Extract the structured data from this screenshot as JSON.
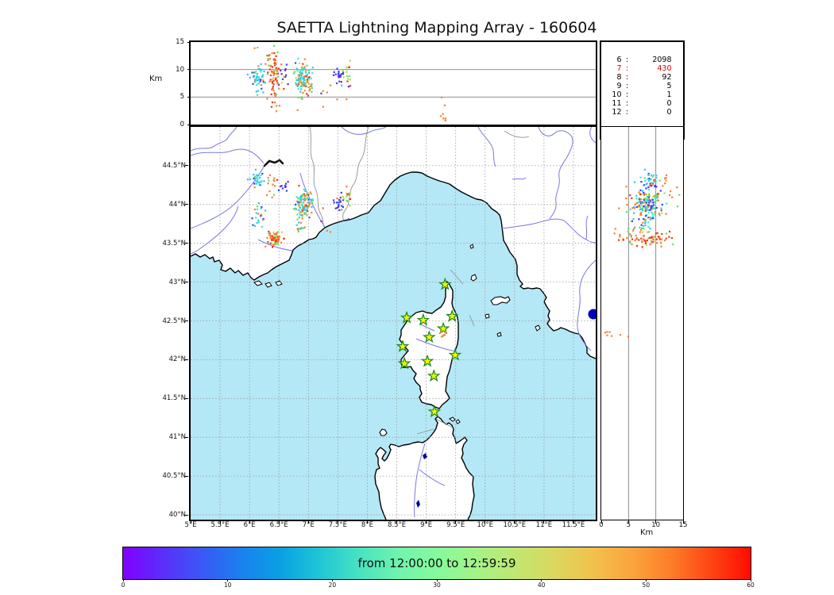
{
  "title": "SAETTA Lightning Mapping Array - 160604",
  "labels": {
    "top_ylabel": "Km",
    "right_xlabel": "Km"
  },
  "legend": {
    "rows": [
      {
        "station_count": "6",
        "sources": "2098",
        "highlight": false
      },
      {
        "station_count": "7",
        "sources": "430",
        "highlight": true
      },
      {
        "station_count": "8",
        "sources": "92",
        "highlight": false
      },
      {
        "station_count": "9",
        "sources": "5",
        "highlight": false
      },
      {
        "station_count": "10",
        "sources": "1",
        "highlight": false
      },
      {
        "station_count": "11",
        "sources": "0",
        "highlight": false
      },
      {
        "station_count": "12",
        "sources": "0",
        "highlight": false
      }
    ]
  },
  "axes": {
    "top_panel": {
      "ylabel": "Km",
      "ylim": [
        0,
        15
      ],
      "grid_y": [
        5,
        10
      ],
      "yticks": [
        {
          "v": 0,
          "label": "0"
        },
        {
          "v": 5,
          "label": "5"
        },
        {
          "v": 10,
          "label": "10"
        },
        {
          "v": 15,
          "label": "15"
        }
      ]
    },
    "map": {
      "lon_lim": [
        5.0,
        11.879
      ],
      "lat_lim": [
        39.939,
        45.0
      ],
      "lon_ticks": [
        {
          "v": 5,
          "label": "5°E"
        },
        {
          "v": 5.5,
          "label": "5.5°E"
        },
        {
          "v": 6,
          "label": "6°E"
        },
        {
          "v": 6.5,
          "label": "6.5°E"
        },
        {
          "v": 7,
          "label": "7°E"
        },
        {
          "v": 7.5,
          "label": "7.5°E"
        },
        {
          "v": 8,
          "label": "8°E"
        },
        {
          "v": 8.5,
          "label": "8.5°E"
        },
        {
          "v": 9,
          "label": "9°E"
        },
        {
          "v": 9.5,
          "label": "9.5°E"
        },
        {
          "v": 10,
          "label": "10°E"
        },
        {
          "v": 10.5,
          "label": "10.5°E"
        },
        {
          "v": 11,
          "label": "11°E"
        },
        {
          "v": 11.5,
          "label": "11.5°E"
        }
      ],
      "lat_ticks": [
        {
          "v": 44.5,
          "label": "44.5°N"
        },
        {
          "v": 44,
          "label": "44°N"
        },
        {
          "v": 43.5,
          "label": "43.5°N"
        },
        {
          "v": 43,
          "label": "43°N"
        },
        {
          "v": 42.5,
          "label": "42.5°N"
        },
        {
          "v": 42,
          "label": "42°N"
        },
        {
          "v": 41.5,
          "label": "41.5°N"
        },
        {
          "v": 41,
          "label": "41°N"
        },
        {
          "v": 40.5,
          "label": "40.5°N"
        },
        {
          "v": 40,
          "label": "40°N"
        }
      ]
    },
    "right_panel": {
      "xlabel": "Km",
      "xlim": [
        0,
        15
      ],
      "grid_x": [
        5,
        10
      ],
      "xticks": [
        {
          "v": 0,
          "label": "0"
        },
        {
          "v": 5,
          "label": "5"
        },
        {
          "v": 10,
          "label": "10"
        },
        {
          "v": 15,
          "label": "15"
        }
      ]
    }
  },
  "colorbar": {
    "label": "from 12:00:00 to 12:59:59",
    "ticks": [
      {
        "v": 0,
        "label": "0"
      },
      {
        "v": 10,
        "label": "10"
      },
      {
        "v": 20,
        "label": "20"
      },
      {
        "v": 30,
        "label": "30"
      },
      {
        "v": 40,
        "label": "40"
      },
      {
        "v": 50,
        "label": "50"
      },
      {
        "v": 60,
        "label": "60"
      }
    ],
    "gradient": [
      "#8000ff",
      "#5b2efa",
      "#3a58f6",
      "#1a80ef",
      "#09a0e4",
      "#1fc5d5",
      "#46e2c2",
      "#6ff3ae",
      "#85fa9c",
      "#a4f387",
      "#c0e771",
      "#dbd75e",
      "#f2c14b",
      "#fba33c",
      "#fd7c28",
      "#fe4413",
      "#ff0c00"
    ]
  },
  "map_colors": {
    "sea": "#b4e8f6",
    "land": "#ffffff",
    "coast": "#000000",
    "river": "#7878e8",
    "border": "#909090",
    "grid": "#999999",
    "lake": "#000088",
    "star_fill": "#f8f400",
    "star_edge": "#15881c"
  },
  "chart_data": {
    "type": "scatter",
    "title": "SAETTA Lightning Mapping Array - 160604",
    "subtitle_time_window": "from 12:00:00 to 12:59:59",
    "panels": {
      "top": {
        "x": "longitude_degE",
        "y": "altitude_km",
        "xlim": [
          5,
          11.879
        ],
        "ylim": [
          0,
          15
        ]
      },
      "map": {
        "x": "longitude_degE",
        "y": "latitude_degN",
        "xlim": [
          5,
          11.879
        ],
        "ylim": [
          39.939,
          45.0
        ]
      },
      "right": {
        "x": "altitude_km",
        "y": "latitude_degN",
        "xlim": [
          0,
          15
        ],
        "ylim": [
          39.939,
          45.0
        ]
      }
    },
    "legend_station_counts": {
      "6": 2098,
      "7": 430,
      "8": 92,
      "9": 5,
      "10": 1,
      "11": 0,
      "12": 0
    },
    "colorbar_minutes": [
      0,
      60
    ],
    "time_palette": {
      "purple": "#5a30dd",
      "blue": "#2848f0",
      "cyan": "#30c8e8",
      "turq": "#40e8c8",
      "green": "#66dd66",
      "ygreen": "#aadd44",
      "sand": "#ddcc55",
      "orange": "#f88030",
      "red": "#ee3815",
      "dred": "#dd1500"
    },
    "stations_lonlat": [
      [
        9.32,
        42.97
      ],
      [
        8.67,
        42.54
      ],
      [
        8.95,
        42.51
      ],
      [
        9.44,
        42.56
      ],
      [
        9.29,
        42.4
      ],
      [
        9.05,
        42.29
      ],
      [
        8.6,
        42.17
      ],
      [
        9.49,
        42.06
      ],
      [
        8.63,
        41.95
      ],
      [
        9.02,
        41.98
      ],
      [
        9.13,
        41.79
      ],
      [
        9.14,
        41.33
      ]
    ],
    "source_clusters": [
      {
        "n": 26,
        "lon": [
          6.14,
          0.07
        ],
        "lat": [
          44.33,
          0.05
        ],
        "alt": [
          9.0,
          1.0
        ],
        "colors": [
          [
            "cyan",
            0.55
          ],
          [
            "turq",
            0.25
          ],
          [
            "blue",
            0.1
          ],
          [
            "green",
            0.1
          ]
        ]
      },
      {
        "n": 10,
        "lon": [
          6.36,
          0.06
        ],
        "lat": [
          44.3,
          0.05
        ],
        "alt": [
          11.5,
          1.2
        ],
        "colors": [
          [
            "orange",
            0.5
          ],
          [
            "red",
            0.3
          ],
          [
            "green",
            0.2
          ]
        ]
      },
      {
        "n": 10,
        "lon": [
          6.57,
          0.04
        ],
        "lat": [
          44.2,
          0.04
        ],
        "alt": [
          9.0,
          0.8
        ],
        "colors": [
          [
            "purple",
            0.7
          ],
          [
            "blue",
            0.3
          ]
        ]
      },
      {
        "n": 60,
        "lon": [
          6.42,
          0.06
        ],
        "lat": [
          43.56,
          0.05
        ],
        "alt": [
          9.5,
          2.2
        ],
        "colors": [
          [
            "orange",
            0.45
          ],
          [
            "red",
            0.3
          ],
          [
            "sand",
            0.1
          ],
          [
            "green",
            0.15
          ]
        ]
      },
      {
        "n": 10,
        "lon": [
          6.42,
          0.06
        ],
        "lat": [
          43.56,
          0.04
        ],
        "alt": [
          4.0,
          1.5
        ],
        "colors": [
          [
            "orange",
            0.7
          ],
          [
            "red",
            0.3
          ]
        ]
      },
      {
        "n": 110,
        "lon": [
          6.92,
          0.08
        ],
        "lat": [
          44.0,
          0.09
        ],
        "alt": [
          8.5,
          1.4
        ],
        "colors": [
          [
            "cyan",
            0.18
          ],
          [
            "turq",
            0.2
          ],
          [
            "green",
            0.14
          ],
          [
            "orange",
            0.23
          ],
          [
            "red",
            0.15
          ],
          [
            "blue",
            0.05
          ],
          [
            "sand",
            0.05
          ]
        ]
      },
      {
        "n": 12,
        "lon": [
          6.86,
          0.05
        ],
        "lat": [
          43.7,
          0.05
        ],
        "alt": [
          7.0,
          1.2
        ],
        "colors": [
          [
            "green",
            0.5
          ],
          [
            "cyan",
            0.25
          ],
          [
            "orange",
            0.25
          ]
        ]
      },
      {
        "n": 20,
        "lon": [
          7.52,
          0.04
        ],
        "lat": [
          44.03,
          0.05
        ],
        "alt": [
          8.8,
          0.9
        ],
        "colors": [
          [
            "purple",
            0.7
          ],
          [
            "blue",
            0.3
          ]
        ]
      },
      {
        "n": 14,
        "lon": [
          7.66,
          0.04
        ],
        "lat": [
          44.13,
          0.05
        ],
        "alt": [
          9.6,
          1.1
        ],
        "colors": [
          [
            "ygreen",
            0.55
          ],
          [
            "green",
            0.3
          ],
          [
            "red",
            0.15
          ]
        ]
      },
      {
        "n": 22,
        "lon": [
          6.12,
          0.07
        ],
        "lat": [
          43.85,
          0.07
        ],
        "alt": [
          8.0,
          1.2
        ],
        "colors": [
          [
            "cyan",
            0.4
          ],
          [
            "blue",
            0.25
          ],
          [
            "turq",
            0.2
          ],
          [
            "orange",
            0.15
          ]
        ]
      },
      {
        "n": 7,
        "lon": [
          9.29,
          0.03
        ],
        "lat": [
          42.33,
          0.02
        ],
        "alt": [
          2.4,
          1.2
        ],
        "colors": [
          [
            "orange",
            1.0
          ]
        ]
      },
      {
        "n": 6,
        "lon": [
          6.3,
          0.12
        ],
        "lat": [
          44.15,
          0.1
        ],
        "alt": [
          13.6,
          0.7
        ],
        "colors": [
          [
            "orange",
            0.65
          ],
          [
            "green",
            0.35
          ]
        ]
      },
      {
        "n": 10,
        "lon": [
          6.9,
          0.45
        ],
        "lat": [
          43.9,
          0.25
        ],
        "alt": [
          6.5,
          2.5
        ],
        "colors": [
          [
            "orange",
            0.4
          ],
          [
            "cyan",
            0.3
          ],
          [
            "purple",
            0.3
          ]
        ]
      }
    ]
  }
}
